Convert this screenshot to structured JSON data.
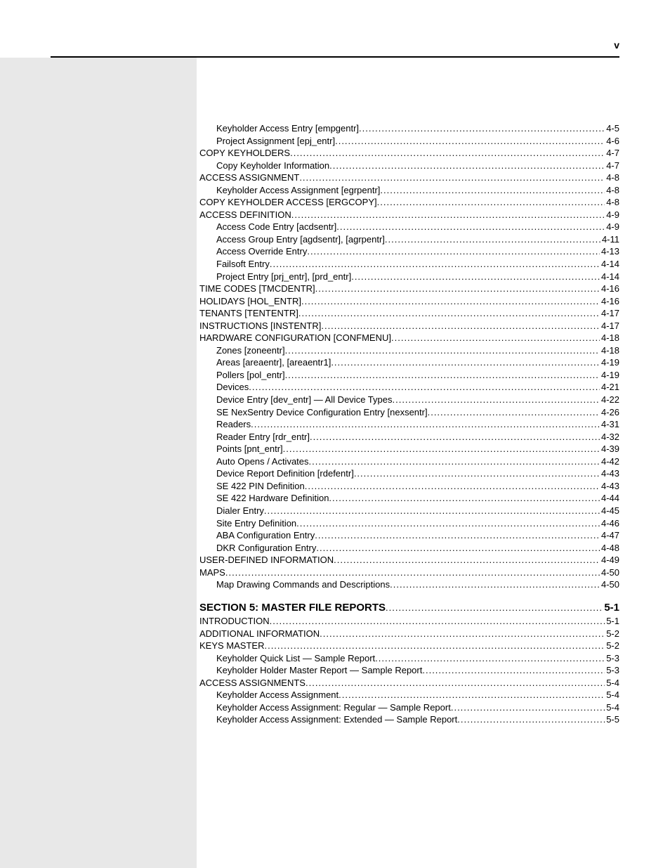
{
  "page_number_label": "v",
  "toc": [
    {
      "indent": 1,
      "label": "Keyholder Access Entry [empgentr]",
      "page": "4-5"
    },
    {
      "indent": 1,
      "label": "Project Assignment [epj_entr]",
      "page": "4-6"
    },
    {
      "indent": 0,
      "label": "COPY KEYHOLDERS",
      "page": "4-7"
    },
    {
      "indent": 1,
      "label": "Copy Keyholder Information",
      "page": "4-7"
    },
    {
      "indent": 0,
      "label": "ACCESS ASSIGNMENT",
      "page": "4-8"
    },
    {
      "indent": 1,
      "label": "Keyholder Access Assignment [egrpentr]",
      "page": "4-8"
    },
    {
      "indent": 0,
      "label": "COPY KEYHOLDER ACCESS [ERGCOPY]",
      "page": "4-8"
    },
    {
      "indent": 0,
      "label": "ACCESS DEFINITION",
      "page": "4-9"
    },
    {
      "indent": 1,
      "label": "Access Code Entry [acdsentr]",
      "page": "4-9"
    },
    {
      "indent": 1,
      "label": "Access Group Entry [agdsentr], [agrpentr]",
      "page": "4-11"
    },
    {
      "indent": 1,
      "label": "Access Override Entry",
      "page": "4-13"
    },
    {
      "indent": 1,
      "label": "Failsoft Entry",
      "page": "4-14"
    },
    {
      "indent": 1,
      "label": "Project Entry [prj_entr], [prd_entr]",
      "page": "4-14"
    },
    {
      "indent": 0,
      "label": "TIME CODES [TMCDENTR]",
      "page": "4-16"
    },
    {
      "indent": 0,
      "label": "HOLIDAYS [HOL_ENTR]",
      "page": "4-16"
    },
    {
      "indent": 0,
      "label": "TENANTS [TENTENTR]",
      "page": "4-17"
    },
    {
      "indent": 0,
      "label": "INSTRUCTIONS [INSTENTR]",
      "page": "4-17"
    },
    {
      "indent": 0,
      "label": "HARDWARE CONFIGURATION [CONFMENU]",
      "page": "4-18"
    },
    {
      "indent": 1,
      "label": "Zones [zoneentr]",
      "page": "4-18"
    },
    {
      "indent": 1,
      "label": "Areas [areaentr], [areaentr1]",
      "page": "4-19"
    },
    {
      "indent": 1,
      "label": "Pollers [pol_entr]",
      "page": "4-19"
    },
    {
      "indent": 1,
      "label": "Devices",
      "page": "4-21"
    },
    {
      "indent": 1,
      "label": "Device Entry [dev_entr] — All Device Types",
      "page": "4-22"
    },
    {
      "indent": 1,
      "label": "SE NexSentry Device Configuration Entry [nexsentr]",
      "page": "4-26"
    },
    {
      "indent": 1,
      "label": "Readers",
      "page": "4-31"
    },
    {
      "indent": 1,
      "label": "Reader Entry [rdr_entr]",
      "page": "4-32"
    },
    {
      "indent": 1,
      "label": "Points [pnt_entr]",
      "page": "4-39"
    },
    {
      "indent": 1,
      "label": "Auto Opens / Activates",
      "page": "4-42"
    },
    {
      "indent": 1,
      "label": "Device Report Definition [rdefentr]",
      "page": "4-43"
    },
    {
      "indent": 1,
      "label": "SE 422 PIN Definition",
      "page": "4-43"
    },
    {
      "indent": 1,
      "label": "SE 422 Hardware Definition",
      "page": "4-44"
    },
    {
      "indent": 1,
      "label": "Dialer Entry",
      "page": "4-45"
    },
    {
      "indent": 1,
      "label": "Site Entry Definition",
      "page": "4-46"
    },
    {
      "indent": 1,
      "label": "ABA Configuration Entry",
      "page": "4-47"
    },
    {
      "indent": 1,
      "label": "DKR Configuration Entry",
      "page": "4-48"
    },
    {
      "indent": 0,
      "label": "USER-DEFINED INFORMATION",
      "page": "4-49"
    },
    {
      "indent": 0,
      "label": "MAPS",
      "page": "4-50"
    },
    {
      "indent": 1,
      "label": "Map Drawing Commands and Descriptions",
      "page": "4-50"
    },
    {
      "gap": true
    },
    {
      "indent": 0,
      "label": "SECTION 5: MASTER FILE REPORTS",
      "page": "5-1",
      "section_header": true
    },
    {
      "indent": 0,
      "label": "INTRODUCTION",
      "page": "5-1"
    },
    {
      "indent": 0,
      "label": "ADDITIONAL INFORMATION",
      "page": "5-2"
    },
    {
      "indent": 0,
      "label": "KEYS MASTER",
      "page": "5-2"
    },
    {
      "indent": 1,
      "label": "Keyholder Quick List — Sample Report",
      "page": "5-3"
    },
    {
      "indent": 1,
      "label": "Keyholder Holder Master Report — Sample Report",
      "page": "5-3"
    },
    {
      "indent": 0,
      "label": "ACCESS ASSIGNMENTS",
      "page": "5-4"
    },
    {
      "indent": 1,
      "label": "Keyholder Access Assignment",
      "page": "5-4"
    },
    {
      "indent": 1,
      "label": "Keyholder Access Assignment: Regular — Sample Report",
      "page": "5-4"
    },
    {
      "indent": 1,
      "label": "Keyholder Access Assignment: Extended — Sample Report",
      "page": "5-5"
    }
  ]
}
